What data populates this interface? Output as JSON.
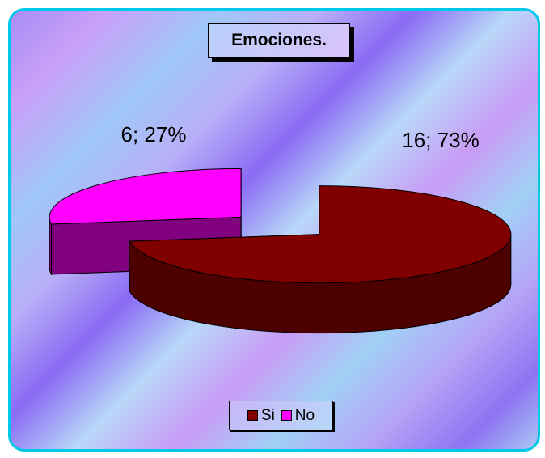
{
  "chart_data": {
    "type": "pie3d",
    "title": "Emociones.",
    "categories": [
      "Si",
      "No"
    ],
    "values": [
      16,
      6
    ],
    "value_labels": [
      "16; 73%",
      "6; 27%"
    ],
    "colors": [
      "#800000",
      "#ff00ff"
    ],
    "legend": "bottom"
  }
}
